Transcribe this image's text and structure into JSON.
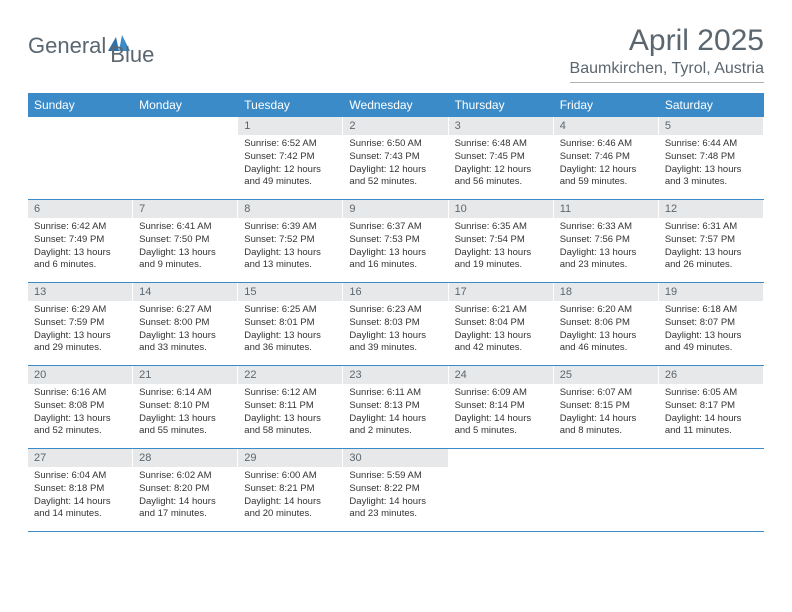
{
  "logo": {
    "text1": "General",
    "text2": "Blue"
  },
  "title": "April 2025",
  "location": "Baumkirchen, Tyrol, Austria",
  "colors": {
    "accent": "#3b8bc9",
    "header_text": "#5b6770",
    "daynum_bg": "#e7e8e9",
    "body_text": "#333333",
    "background": "#ffffff"
  },
  "weekdays": [
    "Sunday",
    "Monday",
    "Tuesday",
    "Wednesday",
    "Thursday",
    "Friday",
    "Saturday"
  ],
  "weeks": [
    [
      {
        "blank": true
      },
      {
        "blank": true
      },
      {
        "num": "1",
        "sunrise": "6:52 AM",
        "sunset": "7:42 PM",
        "daylight": "12 hours and 49 minutes."
      },
      {
        "num": "2",
        "sunrise": "6:50 AM",
        "sunset": "7:43 PM",
        "daylight": "12 hours and 52 minutes."
      },
      {
        "num": "3",
        "sunrise": "6:48 AM",
        "sunset": "7:45 PM",
        "daylight": "12 hours and 56 minutes."
      },
      {
        "num": "4",
        "sunrise": "6:46 AM",
        "sunset": "7:46 PM",
        "daylight": "12 hours and 59 minutes."
      },
      {
        "num": "5",
        "sunrise": "6:44 AM",
        "sunset": "7:48 PM",
        "daylight": "13 hours and 3 minutes."
      }
    ],
    [
      {
        "num": "6",
        "sunrise": "6:42 AM",
        "sunset": "7:49 PM",
        "daylight": "13 hours and 6 minutes."
      },
      {
        "num": "7",
        "sunrise": "6:41 AM",
        "sunset": "7:50 PM",
        "daylight": "13 hours and 9 minutes."
      },
      {
        "num": "8",
        "sunrise": "6:39 AM",
        "sunset": "7:52 PM",
        "daylight": "13 hours and 13 minutes."
      },
      {
        "num": "9",
        "sunrise": "6:37 AM",
        "sunset": "7:53 PM",
        "daylight": "13 hours and 16 minutes."
      },
      {
        "num": "10",
        "sunrise": "6:35 AM",
        "sunset": "7:54 PM",
        "daylight": "13 hours and 19 minutes."
      },
      {
        "num": "11",
        "sunrise": "6:33 AM",
        "sunset": "7:56 PM",
        "daylight": "13 hours and 23 minutes."
      },
      {
        "num": "12",
        "sunrise": "6:31 AM",
        "sunset": "7:57 PM",
        "daylight": "13 hours and 26 minutes."
      }
    ],
    [
      {
        "num": "13",
        "sunrise": "6:29 AM",
        "sunset": "7:59 PM",
        "daylight": "13 hours and 29 minutes."
      },
      {
        "num": "14",
        "sunrise": "6:27 AM",
        "sunset": "8:00 PM",
        "daylight": "13 hours and 33 minutes."
      },
      {
        "num": "15",
        "sunrise": "6:25 AM",
        "sunset": "8:01 PM",
        "daylight": "13 hours and 36 minutes."
      },
      {
        "num": "16",
        "sunrise": "6:23 AM",
        "sunset": "8:03 PM",
        "daylight": "13 hours and 39 minutes."
      },
      {
        "num": "17",
        "sunrise": "6:21 AM",
        "sunset": "8:04 PM",
        "daylight": "13 hours and 42 minutes."
      },
      {
        "num": "18",
        "sunrise": "6:20 AM",
        "sunset": "8:06 PM",
        "daylight": "13 hours and 46 minutes."
      },
      {
        "num": "19",
        "sunrise": "6:18 AM",
        "sunset": "8:07 PM",
        "daylight": "13 hours and 49 minutes."
      }
    ],
    [
      {
        "num": "20",
        "sunrise": "6:16 AM",
        "sunset": "8:08 PM",
        "daylight": "13 hours and 52 minutes."
      },
      {
        "num": "21",
        "sunrise": "6:14 AM",
        "sunset": "8:10 PM",
        "daylight": "13 hours and 55 minutes."
      },
      {
        "num": "22",
        "sunrise": "6:12 AM",
        "sunset": "8:11 PM",
        "daylight": "13 hours and 58 minutes."
      },
      {
        "num": "23",
        "sunrise": "6:11 AM",
        "sunset": "8:13 PM",
        "daylight": "14 hours and 2 minutes."
      },
      {
        "num": "24",
        "sunrise": "6:09 AM",
        "sunset": "8:14 PM",
        "daylight": "14 hours and 5 minutes."
      },
      {
        "num": "25",
        "sunrise": "6:07 AM",
        "sunset": "8:15 PM",
        "daylight": "14 hours and 8 minutes."
      },
      {
        "num": "26",
        "sunrise": "6:05 AM",
        "sunset": "8:17 PM",
        "daylight": "14 hours and 11 minutes."
      }
    ],
    [
      {
        "num": "27",
        "sunrise": "6:04 AM",
        "sunset": "8:18 PM",
        "daylight": "14 hours and 14 minutes."
      },
      {
        "num": "28",
        "sunrise": "6:02 AM",
        "sunset": "8:20 PM",
        "daylight": "14 hours and 17 minutes."
      },
      {
        "num": "29",
        "sunrise": "6:00 AM",
        "sunset": "8:21 PM",
        "daylight": "14 hours and 20 minutes."
      },
      {
        "num": "30",
        "sunrise": "5:59 AM",
        "sunset": "8:22 PM",
        "daylight": "14 hours and 23 minutes."
      },
      {
        "blank": true
      },
      {
        "blank": true
      },
      {
        "blank": true
      }
    ]
  ],
  "labels": {
    "sunrise_prefix": "Sunrise: ",
    "sunset_prefix": "Sunset: ",
    "daylight_prefix": "Daylight: "
  }
}
